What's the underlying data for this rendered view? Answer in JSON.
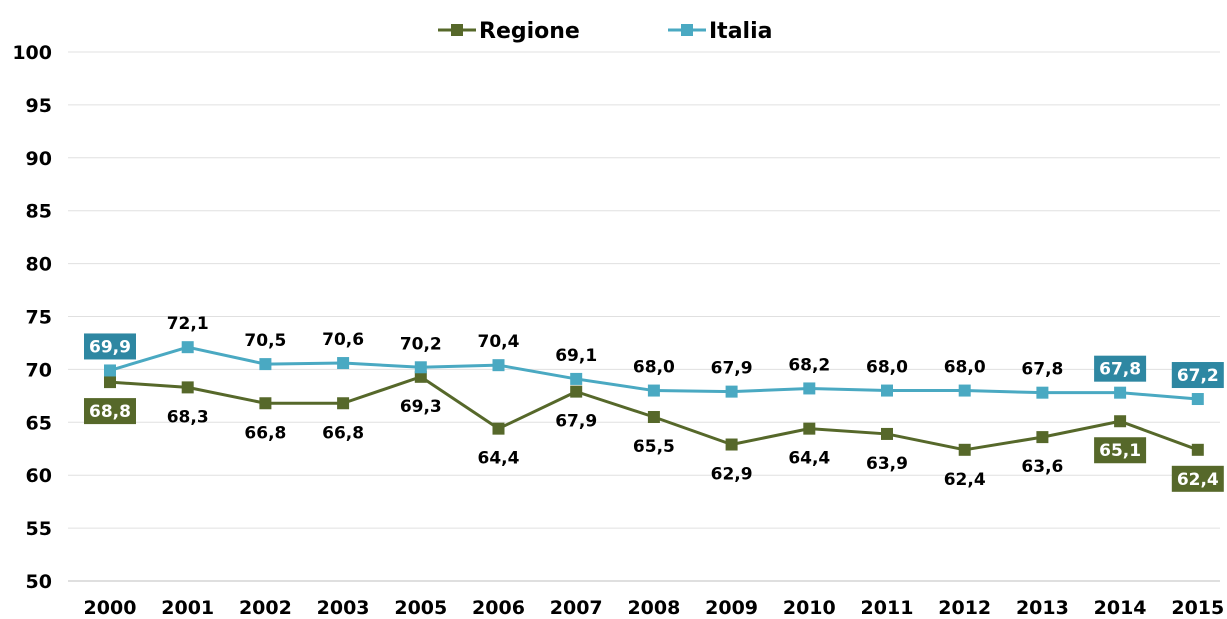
{
  "chart_data": {
    "type": "line",
    "categories": [
      "2000",
      "2001",
      "2002",
      "2003",
      "2005",
      "2006",
      "2007",
      "2008",
      "2009",
      "2010",
      "2011",
      "2012",
      "2013",
      "2014",
      "2015"
    ],
    "series": [
      {
        "name": "Regione",
        "color": "#56682a",
        "values": [
          68.8,
          68.3,
          66.8,
          66.8,
          69.3,
          64.4,
          67.9,
          65.5,
          62.9,
          64.4,
          63.9,
          62.4,
          63.6,
          65.1,
          62.4
        ],
        "labels": [
          "68,8",
          "68,3",
          "66,8",
          "66,8",
          "69,3",
          "64,4",
          "67,9",
          "65,5",
          "62,9",
          "64,4",
          "63,9",
          "62,4",
          "63,6",
          "65,1",
          "62,4"
        ],
        "boxed": [
          0,
          13,
          14
        ]
      },
      {
        "name": "Italia",
        "color": "#4aa9c2",
        "box_color": "#2e87a2",
        "values": [
          69.9,
          72.1,
          70.5,
          70.6,
          70.2,
          70.4,
          69.1,
          68.0,
          67.9,
          68.2,
          68.0,
          68.0,
          67.8,
          67.8,
          67.2
        ],
        "labels": [
          "69,9",
          "72,1",
          "70,5",
          "70,6",
          "70,2",
          "70,4",
          "69,1",
          "68,0",
          "67,9",
          "68,2",
          "68,0",
          "68,0",
          "67,8",
          "67,8",
          "67,2"
        ],
        "boxed": [
          0,
          13,
          14
        ]
      }
    ],
    "y_ticks": [
      "50",
      "55",
      "60",
      "65",
      "70",
      "75",
      "80",
      "85",
      "90",
      "95",
      "100"
    ],
    "ylim": [
      50,
      100
    ],
    "grid": true,
    "legend_position": "top-center"
  }
}
